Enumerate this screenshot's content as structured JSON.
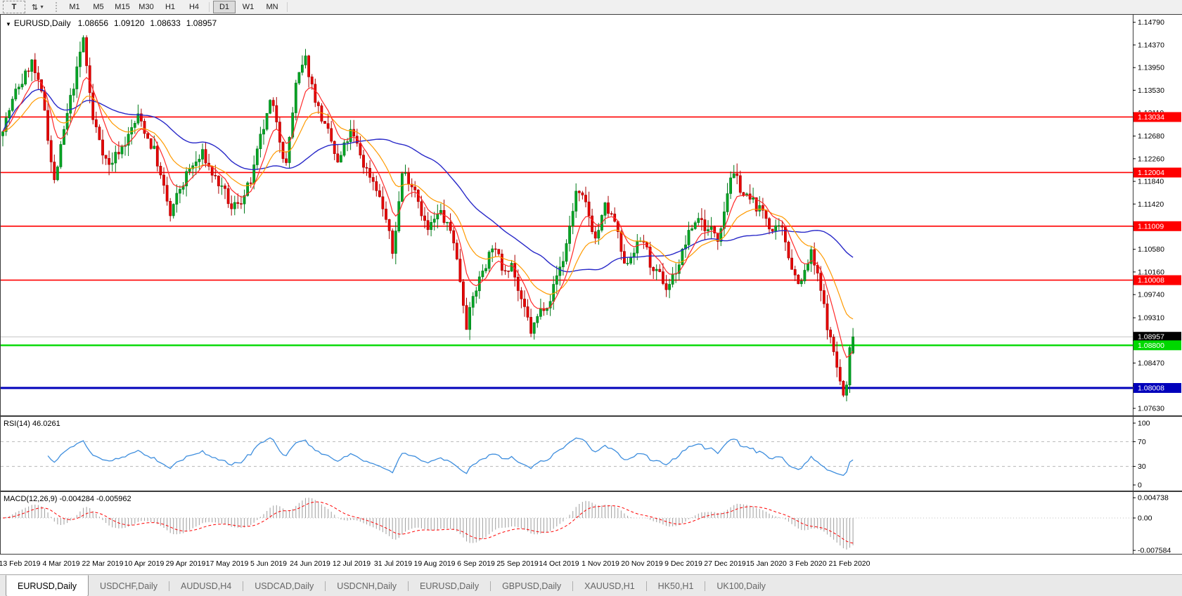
{
  "toolbar": {
    "text_tool_label": "T",
    "timeframes": [
      "M1",
      "M5",
      "M15",
      "M30",
      "H1",
      "H4",
      "D1",
      "W1",
      "MN"
    ],
    "active_timeframe": "D1"
  },
  "icons": {
    "symbol_dropdown": "▼",
    "arrange_tool": "⇅",
    "caret_down": "▼"
  },
  "chart": {
    "title_symbol": "EURUSD,Daily",
    "ohlc_open": "1.08656",
    "ohlc_high": "1.09120",
    "ohlc_low": "1.08633",
    "ohlc_close": "1.08957"
  },
  "chart_data": {
    "type": "candlestick",
    "symbol": "EURUSD",
    "timeframe": "Daily",
    "bars": 265,
    "last_bar": {
      "open": 1.08656,
      "high": 1.0912,
      "low": 1.08633,
      "close": 1.08957
    },
    "anchors": [
      [
        0,
        1.129
      ],
      [
        4,
        1.1345
      ],
      [
        9,
        1.1405
      ],
      [
        13,
        1.131
      ],
      [
        16,
        1.1185
      ],
      [
        20,
        1.13
      ],
      [
        25,
        1.1445
      ],
      [
        28,
        1.1295
      ],
      [
        33,
        1.1215
      ],
      [
        38,
        1.126
      ],
      [
        42,
        1.13
      ],
      [
        47,
        1.1245
      ],
      [
        52,
        1.1115
      ],
      [
        57,
        1.1195
      ],
      [
        62,
        1.123
      ],
      [
        67,
        1.118
      ],
      [
        71,
        1.1125
      ],
      [
        77,
        1.118
      ],
      [
        80,
        1.125
      ],
      [
        83,
        1.132
      ],
      [
        85,
        1.129
      ],
      [
        88,
        1.122
      ],
      [
        91,
        1.136
      ],
      [
        94,
        1.14
      ],
      [
        97,
        1.134
      ],
      [
        100,
        1.1285
      ],
      [
        104,
        1.121
      ],
      [
        108,
        1.127
      ],
      [
        112,
        1.1215
      ],
      [
        116,
        1.118
      ],
      [
        119,
        1.1115
      ],
      [
        121,
        1.1045
      ],
      [
        124,
        1.12
      ],
      [
        128,
        1.118
      ],
      [
        132,
        1.1095
      ],
      [
        136,
        1.112
      ],
      [
        140,
        1.1075
      ],
      [
        144,
        1.093
      ],
      [
        147,
        1.0985
      ],
      [
        150,
        1.1035
      ],
      [
        152,
        1.107
      ],
      [
        155,
        1.102
      ],
      [
        158,
        1.1045
      ],
      [
        161,
        1.0955
      ],
      [
        164,
        1.09
      ],
      [
        167,
        1.094
      ],
      [
        170,
        1.098
      ],
      [
        174,
        1.104
      ],
      [
        178,
        1.1165
      ],
      [
        181,
        1.113
      ],
      [
        184,
        1.108
      ],
      [
        187,
        1.113
      ],
      [
        190,
        1.1105
      ],
      [
        193,
        1.1015
      ],
      [
        196,
        1.1065
      ],
      [
        199,
        1.1075
      ],
      [
        202,
        1.101
      ],
      [
        206,
        1.0985
      ],
      [
        209,
        1.102
      ],
      [
        212,
        1.107
      ],
      [
        216,
        1.112
      ],
      [
        219,
        1.1095
      ],
      [
        222,
        1.1085
      ],
      [
        226,
        1.1205
      ],
      [
        229,
        1.117
      ],
      [
        232,
        1.1145
      ],
      [
        236,
        1.1125
      ],
      [
        239,
        1.1095
      ],
      [
        242,
        1.108
      ],
      [
        246,
        1.1015
      ],
      [
        248,
        1.1
      ],
      [
        251,
        1.1045
      ],
      [
        253,
        1.1
      ],
      [
        256,
        1.0915
      ],
      [
        259,
        1.084
      ],
      [
        261,
        1.0785
      ],
      [
        262,
        1.08
      ],
      [
        263,
        1.0866
      ],
      [
        264,
        1.08957
      ]
    ],
    "price_axis": {
      "top": 1.1493,
      "bottom": 1.075,
      "ticks": [
        "1.14790",
        "1.14370",
        "1.13950",
        "1.13530",
        "1.13110",
        "1.12680",
        "1.12260",
        "1.11840",
        "1.11420",
        "1.11000",
        "1.10580",
        "1.10160",
        "1.09740",
        "1.09310",
        "1.08890",
        "1.08470",
        "1.08050",
        "1.07630"
      ],
      "tick_values": [
        1.1479,
        1.1437,
        1.1395,
        1.1353,
        1.1311,
        1.1268,
        1.1226,
        1.1184,
        1.1142,
        1.11,
        1.1058,
        1.1016,
        1.0974,
        1.0931,
        1.0889,
        1.0847,
        1.0805,
        1.0763
      ]
    },
    "levels": [
      {
        "name": "resistance-1",
        "price": 1.13034,
        "label": "1.13034",
        "color": "#ff0000",
        "width": 1.6
      },
      {
        "name": "resistance-2",
        "price": 1.12004,
        "label": "1.12004",
        "color": "#ff0000",
        "width": 1.6
      },
      {
        "name": "resistance-3",
        "price": 1.11009,
        "label": "1.11009",
        "color": "#ff0000",
        "width": 1.6
      },
      {
        "name": "resistance-4",
        "price": 1.10008,
        "label": "1.10008",
        "color": "#ff0000",
        "width": 1.6
      },
      {
        "name": "current-price",
        "price": 1.08957,
        "label": "1.08957",
        "color": "#c4c4c4",
        "width": 1,
        "tag_bg": "#000000"
      },
      {
        "name": "support-green",
        "price": 1.088,
        "label": "1.08800",
        "color": "#00d800",
        "width": 2.4
      },
      {
        "name": "support-blue",
        "price": 1.08008,
        "label": "1.08008",
        "color": "#0000bb",
        "width": 3
      }
    ],
    "colors": {
      "candle_up_fill": "#00a524",
      "candle_up_stroke": "#007a1a",
      "candle_down_fill": "#e60000",
      "candle_down_stroke": "#aa0000",
      "ma_fast": "#ff2a2a",
      "ma_medium": "#ff9a00",
      "ma_slow": "#2828c8",
      "rsi_line": "#3e8ede",
      "macd_hist": "#a6a6a6",
      "macd_signal": "#ff0000",
      "grid_dash": "#b8b8b8",
      "pane_border": "#3c3c3c"
    },
    "moving_averages": [
      {
        "name": "fast-ma",
        "type": "ema",
        "period": 8
      },
      {
        "name": "medium-ma",
        "type": "ema",
        "period": 20
      },
      {
        "name": "slow-ma",
        "type": "sma",
        "period": 45
      }
    ],
    "rsi": {
      "label": "RSI(14) 46.0261",
      "period": 14,
      "value": 46.0261,
      "axis_labels": [
        "100",
        "70",
        "30",
        "0"
      ],
      "axis_values": [
        100,
        70,
        30,
        0
      ],
      "guide_levels": [
        70,
        30
      ]
    },
    "macd": {
      "label": "MACD(12,26,9) -0.004284 -0.005962",
      "fast": 12,
      "slow": 26,
      "signal": 9,
      "macd_value": -0.004284,
      "signal_value": -0.005962,
      "axis_labels": [
        "0.004738",
        "0.00",
        "-0.007584"
      ],
      "axis_values": [
        0.004738,
        0,
        -0.007584
      ]
    },
    "dates": [
      "13 Feb 2019",
      "4 Mar 2019",
      "22 Mar 2019",
      "10 Apr 2019",
      "29 Apr 2019",
      "17 May 2019",
      "5 Jun 2019",
      "24 Jun 2019",
      "12 Jul 2019",
      "31 Jul 2019",
      "19 Aug 2019",
      "6 Sep 2019",
      "25 Sep 2019",
      "14 Oct 2019",
      "1 Nov 2019",
      "20 Nov 2019",
      "9 Dec 2019",
      "27 Dec 2019",
      "15 Jan 2020",
      "3 Feb 2020",
      "21 Feb 2020"
    ]
  },
  "tabs": [
    {
      "label": "EURUSD,Daily",
      "active": true
    },
    {
      "label": "USDCHF,Daily",
      "active": false
    },
    {
      "label": "AUDUSD,H4",
      "active": false
    },
    {
      "label": "USDCAD,Daily",
      "active": false
    },
    {
      "label": "USDCNH,Daily",
      "active": false
    },
    {
      "label": "EURUSD,Daily",
      "active": false
    },
    {
      "label": "GBPUSD,Daily",
      "active": false
    },
    {
      "label": "XAUUSD,H1",
      "active": false
    },
    {
      "label": "HK50,H1",
      "active": false
    },
    {
      "label": "UK100,Daily",
      "active": false
    }
  ]
}
